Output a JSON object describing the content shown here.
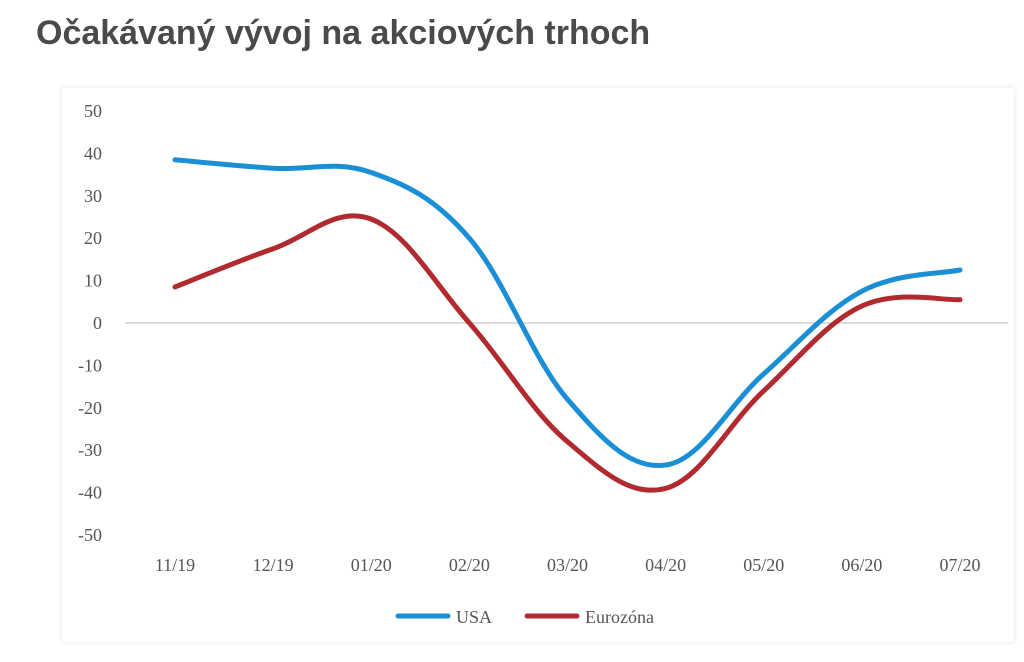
{
  "page": {
    "title": "Očakávaný vývoj na akciových trhoch"
  },
  "chart_data": {
    "type": "line",
    "title": "Očakávaný vývoj na akciových trhoch",
    "xlabel": "",
    "ylabel": "",
    "categories": [
      "11/19",
      "12/19",
      "01/20",
      "02/20",
      "03/20",
      "04/20",
      "05/20",
      "06/20",
      "07/20"
    ],
    "yticks": [
      50,
      40,
      30,
      20,
      10,
      0,
      -10,
      -20,
      -30,
      -40,
      -50
    ],
    "ylim": [
      -50,
      50
    ],
    "grid": false,
    "zero_line": true,
    "legend_position": "bottom-center",
    "series": [
      {
        "name": "USA",
        "color": "#1b8fd6",
        "values": [
          38.5,
          36.5,
          35.5,
          20,
          -18,
          -33.5,
          -12,
          7.5,
          12.5
        ]
      },
      {
        "name": "Eurozóna",
        "color": "#b02a2f",
        "values": [
          8.5,
          17.5,
          24.5,
          0,
          -28,
          -39,
          -16,
          4,
          5.5
        ]
      }
    ]
  }
}
